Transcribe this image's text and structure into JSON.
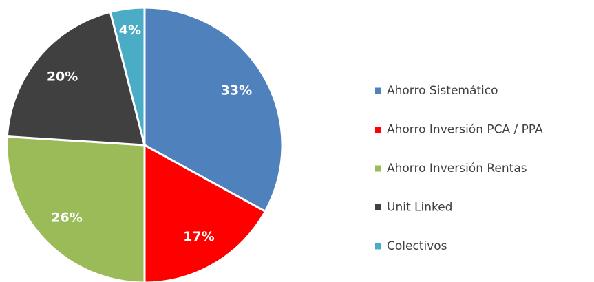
{
  "chart_data": {
    "type": "pie",
    "categories": [
      "Ahorro Sistemático",
      "Ahorro Inversión PCA / PPA",
      "Ahorro Inversión Rentas",
      "Unit Linked",
      "Colectivos"
    ],
    "values": [
      33,
      17,
      26,
      20,
      4
    ],
    "value_labels": [
      "33%",
      "17%",
      "26%",
      "20%",
      "4%"
    ],
    "colors": [
      "#4f81bd",
      "#ff0000",
      "#9bbb59",
      "#404040",
      "#4bacc6"
    ],
    "legend": "right"
  }
}
